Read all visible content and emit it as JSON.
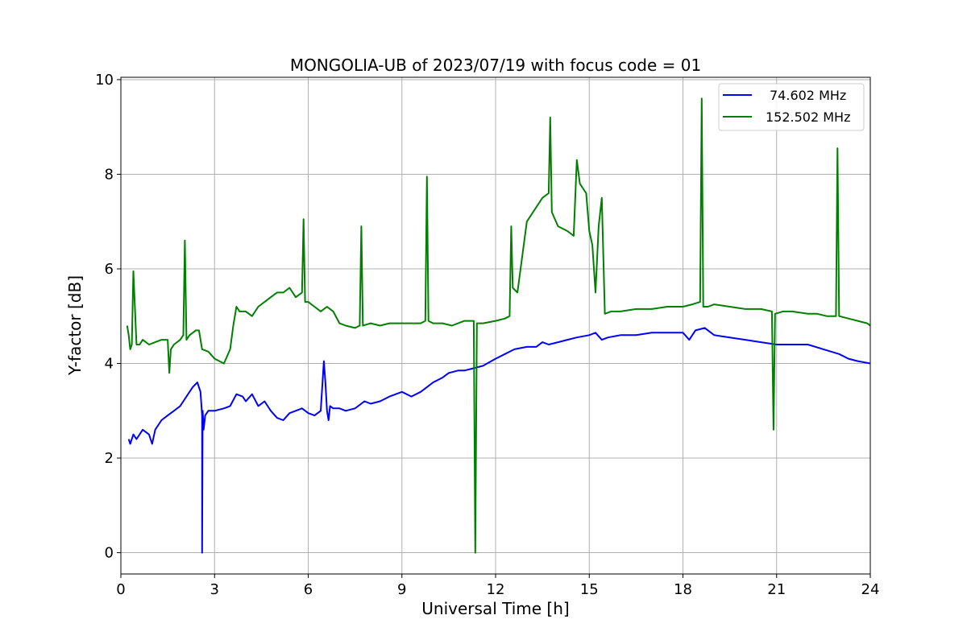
{
  "chart_data": {
    "type": "line",
    "title": "MONGOLIA-UB of 2023/07/19 with focus code = 01",
    "xlabel": "Universal Time [h]",
    "ylabel": "Y-factor [dB]",
    "xlim": [
      0,
      24
    ],
    "ylim": [
      -0.45,
      10.05
    ],
    "xticks": [
      0,
      3,
      6,
      9,
      12,
      15,
      18,
      21,
      24
    ],
    "yticks": [
      0,
      2,
      4,
      6,
      8,
      10
    ],
    "xtick_labels": [
      "0",
      "3",
      "6",
      "9",
      "12",
      "15",
      "18",
      "21",
      "24"
    ],
    "ytick_labels": [
      "0",
      "2",
      "4",
      "6",
      "8",
      "10"
    ],
    "grid": true,
    "legend_position": "top-right",
    "series": [
      {
        "name": "74.602 MHz",
        "color": "#0000ff",
        "x": [
          0.25,
          0.3,
          0.4,
          0.5,
          0.7,
          0.9,
          1.0,
          1.1,
          1.3,
          1.5,
          1.7,
          1.9,
          2.0,
          2.1,
          2.3,
          2.45,
          2.55,
          2.6,
          2.6,
          2.62,
          2.65,
          2.7,
          2.8,
          3.0,
          3.3,
          3.5,
          3.7,
          3.9,
          4.0,
          4.2,
          4.4,
          4.6,
          4.8,
          5.0,
          5.2,
          5.4,
          5.6,
          5.8,
          6.0,
          6.2,
          6.4,
          6.5,
          6.55,
          6.6,
          6.65,
          6.7,
          6.8,
          7.0,
          7.2,
          7.5,
          7.8,
          8.0,
          8.3,
          8.6,
          9.0,
          9.3,
          9.6,
          9.8,
          10.0,
          10.3,
          10.5,
          10.8,
          11.0,
          11.3,
          11.6,
          12.0,
          12.3,
          12.6,
          13.0,
          13.3,
          13.5,
          13.7,
          14.0,
          14.3,
          14.6,
          15.0,
          15.2,
          15.4,
          15.6,
          16.0,
          16.5,
          17.0,
          17.5,
          18.0,
          18.2,
          18.4,
          18.7,
          19.0,
          19.5,
          20.0,
          20.5,
          21.0,
          21.5,
          22.0,
          22.5,
          23.0,
          23.3,
          23.6,
          24.0
        ],
        "values": [
          2.4,
          2.3,
          2.5,
          2.4,
          2.6,
          2.5,
          2.3,
          2.6,
          2.8,
          2.9,
          3.0,
          3.1,
          3.2,
          3.3,
          3.5,
          3.6,
          3.4,
          2.9,
          0.0,
          3.0,
          2.6,
          2.9,
          3.0,
          3.0,
          3.05,
          3.1,
          3.35,
          3.3,
          3.2,
          3.35,
          3.1,
          3.2,
          3.0,
          2.85,
          2.8,
          2.95,
          3.0,
          3.05,
          2.95,
          2.9,
          3.0,
          4.05,
          3.6,
          3.0,
          2.8,
          3.1,
          3.05,
          3.05,
          3.0,
          3.05,
          3.2,
          3.15,
          3.2,
          3.3,
          3.4,
          3.3,
          3.4,
          3.5,
          3.6,
          3.7,
          3.8,
          3.85,
          3.85,
          3.9,
          3.95,
          4.1,
          4.2,
          4.3,
          4.35,
          4.35,
          4.45,
          4.4,
          4.45,
          4.5,
          4.55,
          4.6,
          4.65,
          4.5,
          4.55,
          4.6,
          4.6,
          4.65,
          4.65,
          4.65,
          4.5,
          4.7,
          4.75,
          4.6,
          4.55,
          4.5,
          4.45,
          4.4,
          4.4,
          4.4,
          4.3,
          4.2,
          4.1,
          4.05,
          4.0
        ]
      },
      {
        "name": "152.502 MHz",
        "color": "#008000",
        "x": [
          0.2,
          0.25,
          0.3,
          0.35,
          0.4,
          0.5,
          0.6,
          0.7,
          0.9,
          1.1,
          1.3,
          1.5,
          1.55,
          1.6,
          1.7,
          1.9,
          2.0,
          2.05,
          2.1,
          2.2,
          2.4,
          2.5,
          2.6,
          2.8,
          3.0,
          3.3,
          3.5,
          3.6,
          3.7,
          3.8,
          4.0,
          4.2,
          4.4,
          4.6,
          4.8,
          5.0,
          5.2,
          5.4,
          5.6,
          5.8,
          5.85,
          5.9,
          6.0,
          6.2,
          6.4,
          6.6,
          6.8,
          7.0,
          7.2,
          7.5,
          7.65,
          7.7,
          7.75,
          8.0,
          8.3,
          8.6,
          9.0,
          9.3,
          9.6,
          9.75,
          9.8,
          9.85,
          10.0,
          10.3,
          10.6,
          11.0,
          11.3,
          11.35,
          11.4,
          11.6,
          12.0,
          12.3,
          12.45,
          12.5,
          12.55,
          12.7,
          12.9,
          13.0,
          13.2,
          13.5,
          13.7,
          13.75,
          13.8,
          14.0,
          14.3,
          14.5,
          14.6,
          14.7,
          14.9,
          15.0,
          15.1,
          15.2,
          15.3,
          15.4,
          15.5,
          15.7,
          16.0,
          16.5,
          17.0,
          17.5,
          18.0,
          18.3,
          18.55,
          18.6,
          18.65,
          18.8,
          19.0,
          19.5,
          20.0,
          20.5,
          20.85,
          20.9,
          20.95,
          21.2,
          21.5,
          22.0,
          22.3,
          22.6,
          22.9,
          22.95,
          23.0,
          23.3,
          23.6,
          23.9,
          24.0
        ],
        "values": [
          4.8,
          4.6,
          4.3,
          4.4,
          5.95,
          4.4,
          4.4,
          4.5,
          4.4,
          4.45,
          4.5,
          4.5,
          3.8,
          4.3,
          4.4,
          4.5,
          4.6,
          6.6,
          4.5,
          4.6,
          4.7,
          4.7,
          4.3,
          4.25,
          4.1,
          4.0,
          4.3,
          4.8,
          5.2,
          5.1,
          5.1,
          5.0,
          5.2,
          5.3,
          5.4,
          5.5,
          5.5,
          5.6,
          5.4,
          5.5,
          7.05,
          5.3,
          5.3,
          5.2,
          5.1,
          5.2,
          5.1,
          4.85,
          4.8,
          4.75,
          4.8,
          6.9,
          4.8,
          4.85,
          4.8,
          4.85,
          4.85,
          4.85,
          4.85,
          4.9,
          7.95,
          4.9,
          4.85,
          4.85,
          4.8,
          4.9,
          4.9,
          0.0,
          4.85,
          4.85,
          4.9,
          4.95,
          5.0,
          6.9,
          5.6,
          5.5,
          6.5,
          7.0,
          7.2,
          7.5,
          7.6,
          9.2,
          7.2,
          6.9,
          6.8,
          6.7,
          8.3,
          7.8,
          7.6,
          6.8,
          6.5,
          5.5,
          6.9,
          7.5,
          5.05,
          5.1,
          5.1,
          5.15,
          5.15,
          5.2,
          5.2,
          5.25,
          5.3,
          9.6,
          5.2,
          5.2,
          5.25,
          5.2,
          5.15,
          5.15,
          5.1,
          2.6,
          5.05,
          5.1,
          5.1,
          5.05,
          5.05,
          5.0,
          5.0,
          8.55,
          5.0,
          4.95,
          4.9,
          4.85,
          4.8
        ]
      }
    ]
  }
}
